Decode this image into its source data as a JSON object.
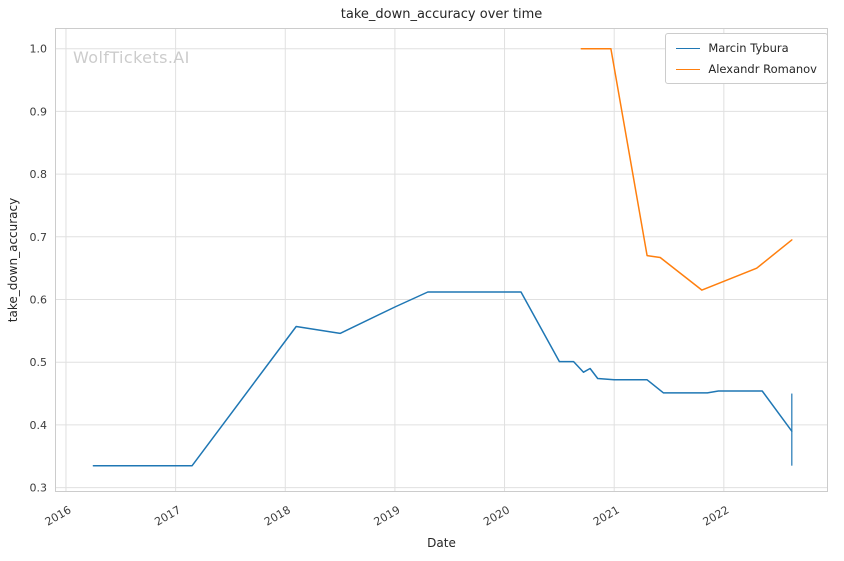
{
  "chart_data": {
    "type": "line",
    "title": "take_down_accuracy over time",
    "xlabel": "Date",
    "ylabel": "take_down_accuracy",
    "watermark": "WolfTickets.AI",
    "grid": true,
    "legend_position": "upper right",
    "xlim": [
      2015.9,
      2022.95
    ],
    "ylim": [
      0.293,
      1.033
    ],
    "x_ticks": [
      2016,
      2017,
      2018,
      2019,
      2020,
      2021,
      2022
    ],
    "x_tick_labels": [
      "2016",
      "2017",
      "2018",
      "2019",
      "2020",
      "2021",
      "2022"
    ],
    "y_ticks": [
      0.3,
      0.4,
      0.5,
      0.6,
      0.7,
      0.8,
      0.9,
      1.0
    ],
    "y_tick_labels": [
      "0.3",
      "0.4",
      "0.5",
      "0.6",
      "0.7",
      "0.8",
      "0.9",
      "1.0"
    ],
    "colors": {
      "grid": "#e0e0e0",
      "spine": "#cccccc",
      "tick_text": "#3c3c3c",
      "title_text": "#262626",
      "watermark": "#cccccc"
    },
    "series": [
      {
        "name": "Marcin Tybura",
        "color": "#1f77b4",
        "points": [
          [
            2016.25,
            0.335
          ],
          [
            2017.15,
            0.335
          ],
          [
            2018.1,
            0.557
          ],
          [
            2018.5,
            0.546
          ],
          [
            2019.0,
            0.588
          ],
          [
            2019.3,
            0.612
          ],
          [
            2020.15,
            0.612
          ],
          [
            2020.5,
            0.501
          ],
          [
            2020.63,
            0.501
          ],
          [
            2020.72,
            0.484
          ],
          [
            2020.78,
            0.49
          ],
          [
            2020.85,
            0.474
          ],
          [
            2021.0,
            0.472
          ],
          [
            2021.3,
            0.472
          ],
          [
            2021.45,
            0.451
          ],
          [
            2021.85,
            0.451
          ],
          [
            2021.95,
            0.454
          ],
          [
            2022.35,
            0.454
          ],
          [
            2022.62,
            0.39
          ]
        ]
      },
      {
        "name": "Alexandr Romanov",
        "color": "#ff7f0e",
        "points": [
          [
            2020.7,
            1.0
          ],
          [
            2020.97,
            1.0
          ],
          [
            2021.3,
            0.67
          ],
          [
            2021.42,
            0.667
          ],
          [
            2021.8,
            0.615
          ],
          [
            2021.9,
            0.622
          ],
          [
            2022.3,
            0.65
          ],
          [
            2022.62,
            0.695
          ]
        ]
      }
    ],
    "error_bar": {
      "series": "Marcin Tybura",
      "x": 2022.62,
      "y_low": 0.335,
      "y_high": 0.45,
      "color": "#1f77b4"
    }
  }
}
